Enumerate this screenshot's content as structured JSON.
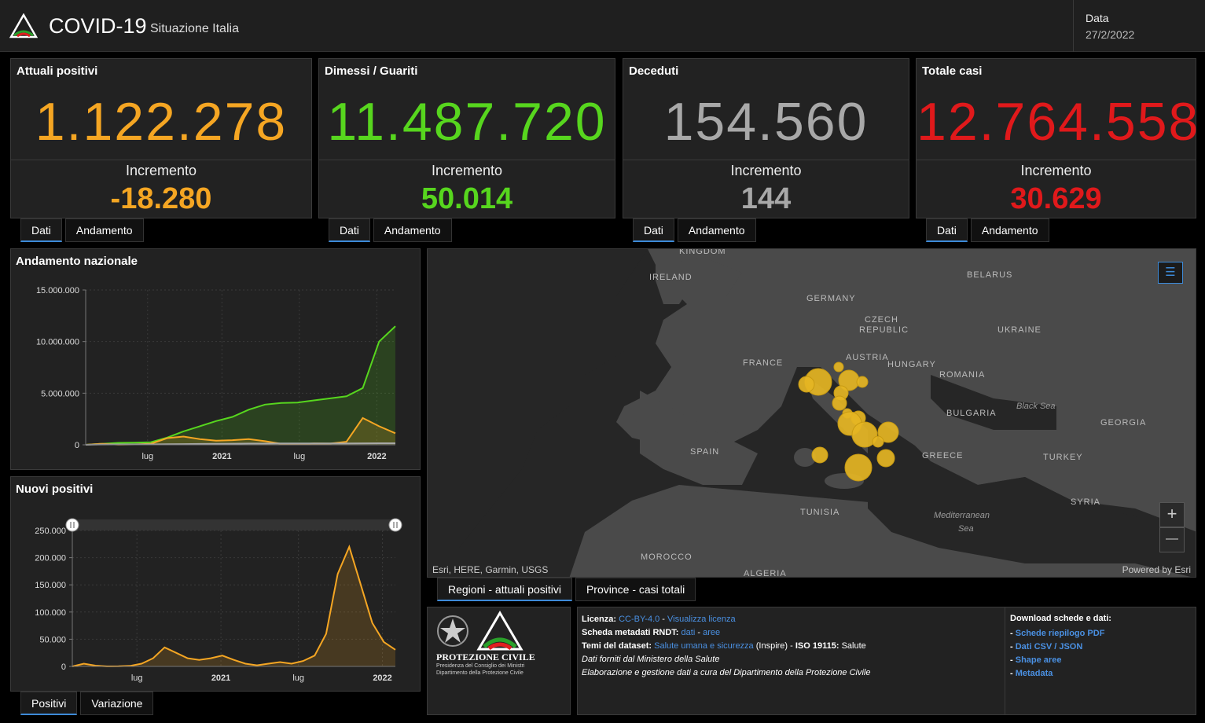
{
  "header": {
    "title": "COVID-19",
    "subtitle": "Situazione Italia",
    "date_label": "Data",
    "date_value": "27/2/2022"
  },
  "colors": {
    "orange": "#f5a623",
    "green": "#57d61e",
    "gray": "#a8a8a8",
    "red": "#e0191b",
    "accent_blue": "#3d8ad8",
    "bubble": "#e5b523"
  },
  "stats": [
    {
      "title": "Attuali positivi",
      "value": "1.122.278",
      "increment_label": "Incremento",
      "increment": "-18.280",
      "tabs": [
        "Dati",
        "Andamento"
      ]
    },
    {
      "title": "Dimessi / Guariti",
      "value": "11.487.720",
      "increment_label": "Incremento",
      "increment": "50.014",
      "tabs": [
        "Dati",
        "Andamento"
      ]
    },
    {
      "title": "Deceduti",
      "value": "154.560",
      "increment_label": "Incremento",
      "increment": "144",
      "tabs": [
        "Dati",
        "Andamento"
      ]
    },
    {
      "title": "Totale casi",
      "value": "12.764.558",
      "increment_label": "Incremento",
      "increment": "30.629",
      "tabs": [
        "Dati",
        "Andamento"
      ]
    }
  ],
  "chart_data": [
    {
      "type": "area",
      "title": "Andamento nazionale",
      "ylim": [
        0,
        15000000
      ],
      "y_ticks": [
        "15.000.000",
        "10.000.000",
        "5.000.000",
        "0"
      ],
      "x_ticks": [
        "lug",
        "2021",
        "lug",
        "2022"
      ],
      "x": [
        "2020-03",
        "2020-05",
        "2020-07",
        "2020-09",
        "2020-10",
        "2020-11",
        "2020-12",
        "2021-01",
        "2021-02",
        "2021-03",
        "2021-04",
        "2021-05",
        "2021-06",
        "2021-07",
        "2021-09",
        "2021-11",
        "2021-12",
        "2022-01",
        "2022-02",
        "2022-02-27"
      ],
      "series": [
        {
          "name": "Dimessi / Guariti",
          "color": "#57d61e",
          "values": [
            0,
            100000,
            190000,
            210000,
            250000,
            700000,
            1300000,
            1800000,
            2300000,
            2700000,
            3400000,
            3900000,
            4050000,
            4100000,
            4300000,
            4500000,
            4700000,
            5500000,
            10000000,
            11487720
          ]
        },
        {
          "name": "Attuali positivi",
          "color": "#f5a623",
          "values": [
            0,
            100000,
            20000,
            40000,
            100000,
            650000,
            800000,
            550000,
            400000,
            450000,
            550000,
            350000,
            100000,
            50000,
            130000,
            120000,
            300000,
            2600000,
            1800000,
            1122278
          ]
        },
        {
          "name": "Deceduti",
          "color": "#a8a8a8",
          "values": [
            0,
            30000,
            35000,
            36000,
            37000,
            50000,
            70000,
            80000,
            95000,
            105000,
            120000,
            125000,
            127000,
            128000,
            130000,
            132000,
            136000,
            142000,
            150000,
            154560
          ]
        }
      ]
    },
    {
      "type": "area",
      "title": "Nuovi positivi",
      "ylim": [
        0,
        250000
      ],
      "y_ticks": [
        "250.000",
        "200.000",
        "150.000",
        "100.000",
        "50.000",
        "0"
      ],
      "x_ticks": [
        "lug",
        "2021",
        "lug",
        "2022"
      ],
      "series": [
        {
          "name": "Nuovi positivi",
          "color": "#f5a623",
          "values": [
            0,
            5000,
            1500,
            200,
            300,
            1000,
            5000,
            15000,
            35000,
            25000,
            15000,
            12000,
            15000,
            20000,
            12000,
            5000,
            2000,
            5000,
            8000,
            5000,
            10000,
            20000,
            60000,
            170000,
            220000,
            150000,
            80000,
            45000,
            30629
          ]
        }
      ]
    }
  ],
  "chart_tabs": [
    "Positivi",
    "Variazione"
  ],
  "map": {
    "labels": [
      "KINGDOM",
      "IRELAND",
      "GERMANY",
      "BELARUS",
      "CZECH",
      "REPUBLIC",
      "UKRAINE",
      "FRANCE",
      "AUSTRIA",
      "HUNGARY",
      "ROMANIA",
      "BULGARIA",
      "GEORGIA",
      "SPAIN",
      "GREECE",
      "TURKEY",
      "TUNISIA",
      "SYRIA",
      "MOROCCO",
      "ALGERIA"
    ],
    "seas": [
      "Black Sea",
      "Mediterranean",
      "Sea"
    ],
    "attribution": "Esri, HERE, Garmin, USGS",
    "powered_by": "Powered by Esri",
    "zoom_in": "+",
    "zoom_out": "—",
    "tabs": [
      "Regioni - attuali positivi",
      "Province - casi totali"
    ]
  },
  "branding": {
    "agency": "PROTEZIONE CIVILE",
    "line1": "Presidenza del Consiglio dei Ministri",
    "line2": "Dipartimento della Protezione Civile"
  },
  "info": {
    "license_label": "Licenza:",
    "license_value": "CC-BY-4.0",
    "license_sep": " - ",
    "license_link": "Visualizza licenza",
    "metadata_label": "Scheda metadati RNDT:",
    "metadata_dati": "dati",
    "metadata_sep": " - ",
    "metadata_aree": "aree",
    "themes_label": "Temi del dataset:",
    "themes_value": "Salute umana e sicurezza",
    "themes_inspire": " (Inspire) - ",
    "iso_label": "ISO 19115:",
    "iso_value": " Salute",
    "note1": "Dati forniti dal Ministero della Salute",
    "note2": "Elaborazione e gestione dati a cura del Dipartimento della Protezione Civile"
  },
  "downloads": {
    "title": "Download schede e dati:",
    "items": [
      "Schede riepilogo PDF",
      "Dati CSV / JSON",
      "Shape aree",
      "Metadata"
    ]
  }
}
